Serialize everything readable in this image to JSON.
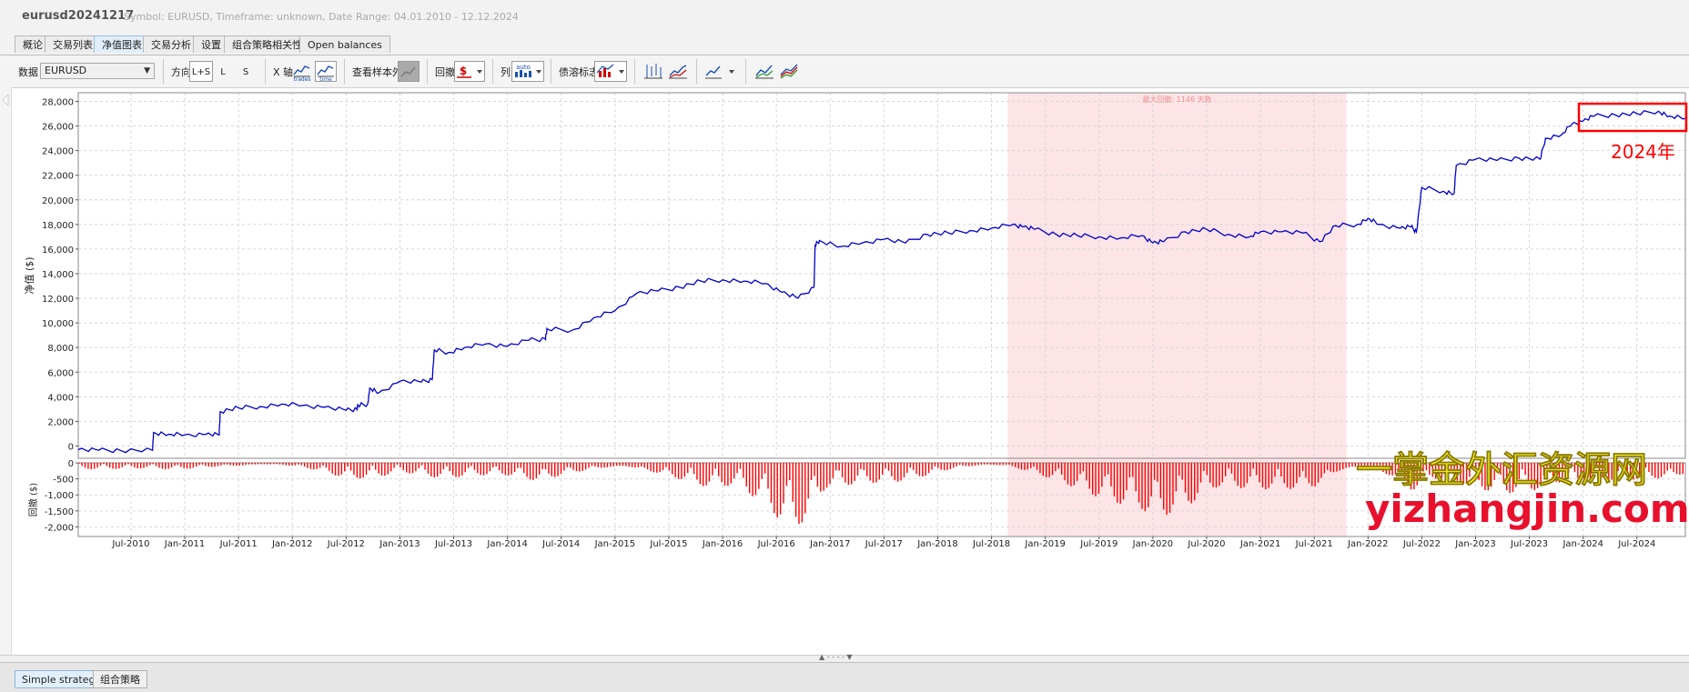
{
  "window": {
    "title": "eurusd20241217",
    "info": "Symbol: EURUSD, Timeframe: unknown, Date Range: 04.01.2010 - 12.12.2024"
  },
  "tabs": [
    {
      "label": "概论",
      "active": false
    },
    {
      "label": "交易列表",
      "active": false
    },
    {
      "label": "净值图表",
      "active": true
    },
    {
      "label": "交易分析",
      "active": false
    },
    {
      "label": "设置",
      "active": false
    },
    {
      "label": "组合策略相关性",
      "active": false
    },
    {
      "label": "Open balances",
      "active": false
    }
  ],
  "toolbar": {
    "data_label": "数据",
    "data_value": "EURUSD",
    "direction_label": "方向",
    "direction_options": [
      "L+S",
      "L",
      "S"
    ],
    "direction_selected": "L+S",
    "xaxis_label": "X 轴",
    "xaxis_trades_label": "trades",
    "xaxis_time_label": "time",
    "out_of_sample_label": "查看样本外",
    "drawdown_label": "回撤",
    "columns_label": "列",
    "columns_icon_label": "auto",
    "benchmark_label": "债溶标志",
    "icons": [
      "trades-chart-icon",
      "time-chart-icon",
      "line-chart-icon",
      "dollar-drawdown-icon",
      "auto-columns-icon",
      "benchmark-chart-icon",
      "candles-chart-icon",
      "equity-line-icon",
      "chart-dropdown-icon",
      "compare-chart-icon",
      "multi-line-chart-icon"
    ]
  },
  "chart_data": {
    "type": "line",
    "x_label": "",
    "y_label": "净值 ($)",
    "y_ticks": [
      "0",
      "2,000",
      "4,000",
      "6,000",
      "8,000",
      "10,000",
      "12,000",
      "14,000",
      "16,000",
      "18,000",
      "20,000",
      "22,000",
      "24,000",
      "26,000",
      "28,000"
    ],
    "ylim": [
      -1000,
      28700
    ],
    "x_ticks": [
      "Jul-2010",
      "Jan-2011",
      "Jul-2011",
      "Jan-2012",
      "Jul-2012",
      "Jan-2013",
      "Jul-2013",
      "Jan-2014",
      "Jul-2014",
      "Jan-2015",
      "Jul-2015",
      "Jan-2016",
      "Jul-2016",
      "Jan-2017",
      "Jul-2017",
      "Jan-2018",
      "Jul-2018",
      "Jan-2019",
      "Jul-2019",
      "Jan-2020",
      "Jul-2020",
      "Jan-2021",
      "Jul-2021",
      "Jan-2022",
      "Jul-2022",
      "Jan-2023",
      "Jul-2023",
      "Jan-2024",
      "Jul-2024"
    ],
    "x_range": [
      2010.01,
      2024.95
    ],
    "series": [
      {
        "name": "",
        "color": "#0000cc",
        "x": [
          2010.01,
          2010.2,
          2010.4,
          2010.7,
          2010.71,
          2010.85,
          2011.0,
          2011.2,
          2011.32,
          2011.33,
          2011.5,
          2011.7,
          2011.9,
          2012.1,
          2012.3,
          2012.5,
          2012.6,
          2012.61,
          2012.7,
          2012.72,
          2012.8,
          2013.0,
          2013.2,
          2013.3,
          2013.32,
          2013.45,
          2013.6,
          2013.8,
          2014.0,
          2014.2,
          2014.35,
          2014.37,
          2014.6,
          2014.8,
          2015.0,
          2015.2,
          2015.4,
          2015.6,
          2015.8,
          2016.0,
          2016.2,
          2016.4,
          2016.55,
          2016.7,
          2016.85,
          2016.86,
          2016.9,
          2017.1,
          2017.3,
          2017.5,
          2017.7,
          2017.9,
          2018.1,
          2018.3,
          2018.5,
          2018.7,
          2018.8,
          2018.9,
          2019.1,
          2019.3,
          2019.5,
          2019.7,
          2019.9,
          2020.0,
          2020.1,
          2020.3,
          2020.5,
          2020.7,
          2020.9,
          2021.0,
          2021.2,
          2021.4,
          2021.55,
          2021.7,
          2021.9,
          2022.0,
          2022.1,
          2022.3,
          2022.4,
          2022.45,
          2022.5,
          2022.7,
          2022.8,
          2022.82,
          2023.0,
          2023.2,
          2023.4,
          2023.6,
          2023.65,
          2023.8,
          2023.9,
          2024.0,
          2024.1,
          2024.3,
          2024.5,
          2024.7,
          2024.8,
          2024.95
        ],
        "y": [
          -300,
          -350,
          -350,
          -350,
          1100,
          950,
          900,
          950,
          900,
          2800,
          3100,
          3200,
          3400,
          3300,
          3150,
          2900,
          3000,
          3300,
          3400,
          4700,
          4300,
          5250,
          5200,
          5400,
          7800,
          7600,
          8000,
          8300,
          8100,
          8600,
          8700,
          9500,
          9400,
          10400,
          11000,
          12400,
          12600,
          12900,
          13400,
          13500,
          13400,
          13200,
          12500,
          12000,
          12900,
          16300,
          16700,
          16200,
          16500,
          16800,
          16500,
          17200,
          17300,
          17500,
          17700,
          18000,
          17800,
          17600,
          17200,
          17100,
          17000,
          16900,
          17100,
          16500,
          16600,
          17400,
          17600,
          17200,
          17000,
          17400,
          17400,
          17300,
          16600,
          17900,
          18000,
          18500,
          18000,
          17700,
          17800,
          17400,
          21000,
          20700,
          20500,
          22800,
          23300,
          23200,
          23400,
          23300,
          25000,
          25300,
          26200,
          26400,
          26800,
          26900,
          27000,
          27200,
          26800,
          26600
        ]
      }
    ],
    "highlight": {
      "label": "最大回撤: 1146 天数",
      "x_from": 2018.65,
      "x_to": 2021.8,
      "color": "#fde4e6"
    },
    "drawdown": {
      "y_label": "回撤 ($)",
      "y_ticks": [
        "0",
        "-500",
        "-1,000",
        "-1,500",
        "-2,000"
      ],
      "ylim": [
        -2300,
        0
      ],
      "color": "#ff0000",
      "depth_points": [
        [
          2010.01,
          200
        ],
        [
          2010.7,
          200
        ],
        [
          2010.9,
          300
        ],
        [
          2011.3,
          250
        ],
        [
          2011.6,
          300
        ],
        [
          2011.9,
          200
        ],
        [
          2012.2,
          400
        ],
        [
          2012.5,
          700
        ],
        [
          2012.8,
          500
        ],
        [
          2013.0,
          300
        ],
        [
          2013.4,
          500
        ],
        [
          2013.7,
          400
        ],
        [
          2014.0,
          450
        ],
        [
          2014.3,
          800
        ],
        [
          2014.6,
          600
        ],
        [
          2014.9,
          500
        ],
        [
          2015.2,
          700
        ],
        [
          2015.5,
          900
        ],
        [
          2015.9,
          1100
        ],
        [
          2016.1,
          800
        ],
        [
          2016.35,
          1300
        ],
        [
          2016.55,
          1900
        ],
        [
          2016.65,
          2100
        ],
        [
          2016.8,
          1700
        ],
        [
          2016.95,
          800
        ],
        [
          2017.3,
          700
        ],
        [
          2017.6,
          800
        ],
        [
          2017.9,
          700
        ],
        [
          2018.2,
          400
        ],
        [
          2018.6,
          300
        ],
        [
          2018.9,
          700
        ],
        [
          2019.2,
          1000
        ],
        [
          2019.5,
          1300
        ],
        [
          2019.9,
          1500
        ],
        [
          2020.0,
          1800
        ],
        [
          2020.3,
          1400
        ],
        [
          2020.6,
          800
        ],
        [
          2020.9,
          1000
        ],
        [
          2021.2,
          1300
        ],
        [
          2021.5,
          1800
        ],
        [
          2021.7,
          1100
        ],
        [
          2021.9,
          700
        ],
        [
          2022.2,
          900
        ],
        [
          2022.4,
          1500
        ],
        [
          2022.6,
          700
        ],
        [
          2022.9,
          800
        ],
        [
          2023.2,
          1000
        ],
        [
          2023.5,
          900
        ],
        [
          2023.8,
          600
        ],
        [
          2024.0,
          700
        ],
        [
          2024.3,
          700
        ],
        [
          2024.6,
          800
        ],
        [
          2024.8,
          1000
        ],
        [
          2024.95,
          900
        ]
      ]
    }
  },
  "annotation": {
    "label": "2024年",
    "box_color": "#ff0000"
  },
  "watermark": {
    "line1": "一掌金外汇资源网",
    "line2": "yizhangjin.com"
  },
  "bottom_tabs": [
    {
      "label": "Simple strategies",
      "active": true
    },
    {
      "label": "组合策略",
      "active": false
    }
  ],
  "splitter_glyph": "▲ - - - - ▼"
}
